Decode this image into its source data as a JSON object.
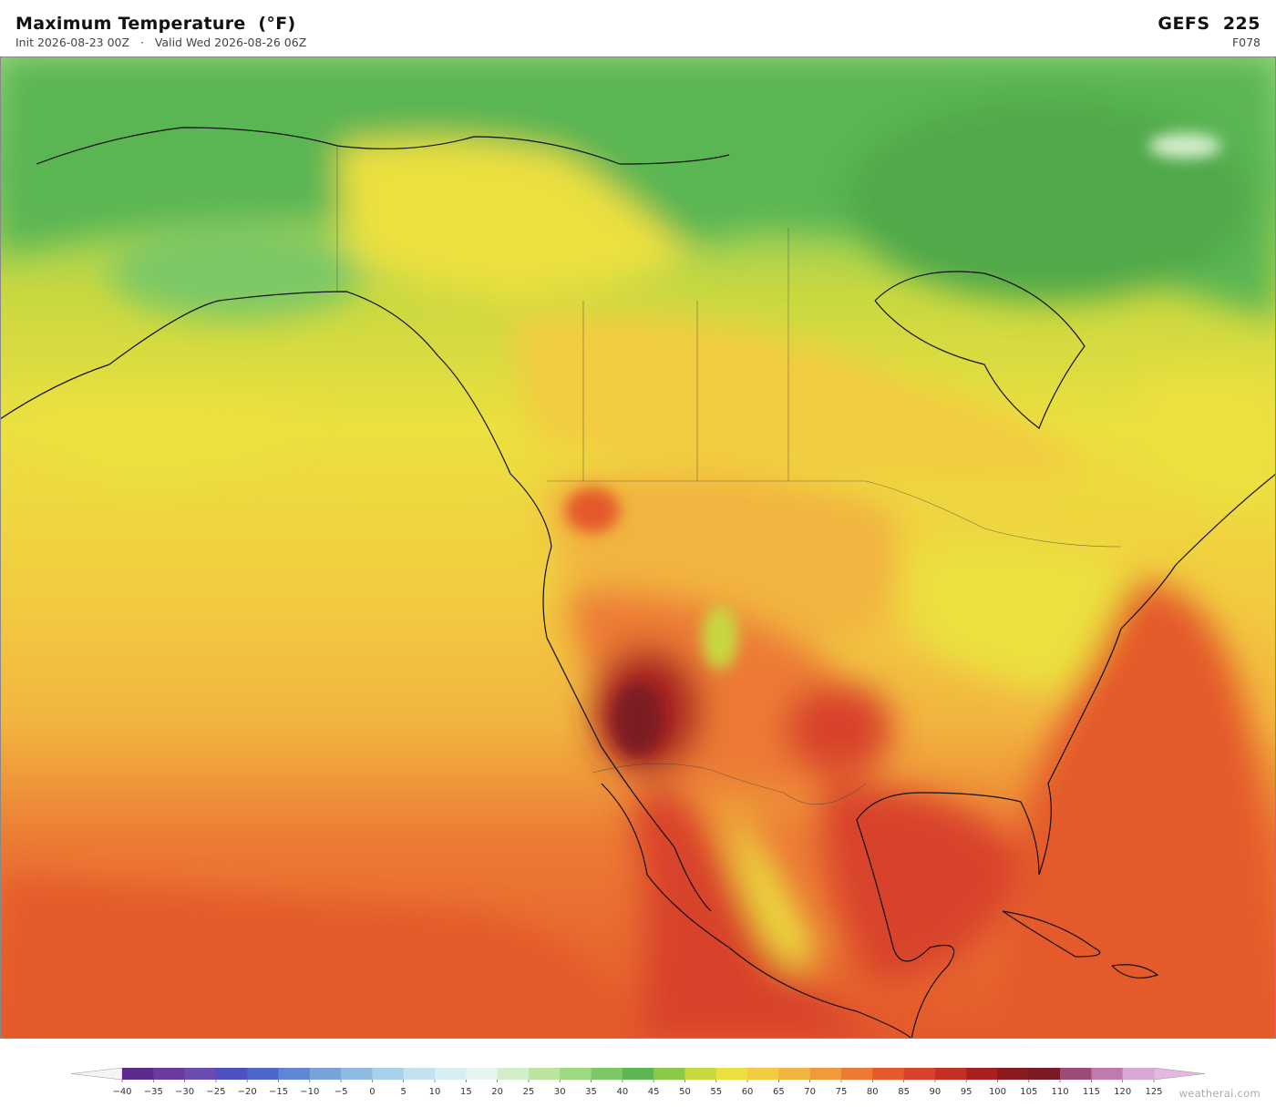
{
  "header": {
    "title": "Maximum Temperature  (°F)",
    "subtitle": "Init 2026-08-23 00Z   ·   Valid Wed 2026-08-26 06Z",
    "model": "GEFS  225",
    "forecast_hour": "F078"
  },
  "colorbar": {
    "ticks": [
      {
        "value": -40,
        "label": "−40"
      },
      {
        "value": -35,
        "label": "−35"
      },
      {
        "value": -30,
        "label": "−30"
      },
      {
        "value": -25,
        "label": "−25"
      },
      {
        "value": -20,
        "label": "−20"
      },
      {
        "value": -15,
        "label": "−15"
      },
      {
        "value": -10,
        "label": "−10"
      },
      {
        "value": -5,
        "label": "−5"
      },
      0,
      5,
      10,
      15,
      20,
      25,
      30,
      35,
      40,
      45,
      50,
      55,
      60,
      65,
      70,
      75,
      80,
      85,
      90,
      95,
      100,
      105,
      110,
      115,
      120,
      125
    ],
    "colors": [
      "#5b2a8c",
      "#6a3a9e",
      "#6a4bb0",
      "#4f4fc4",
      "#4f66cc",
      "#5f86d4",
      "#78a2da",
      "#8fbbe2",
      "#a8d0ea",
      "#c2e2f0",
      "#d8eef2",
      "#e6f4ee",
      "#d4eecc",
      "#bce4a0",
      "#9ed97f",
      "#7cc866",
      "#5ab552",
      "#8cc84a",
      "#c8d840",
      "#ece040",
      "#f2cc40",
      "#f2b440",
      "#f09a3c",
      "#ec7a34",
      "#e45a2c",
      "#d8422a",
      "#c43024",
      "#a82020",
      "#8a1a1e",
      "#7a1a24",
      "#9e4a78",
      "#c07ab0",
      "#d8a8d4"
    ],
    "under_color": "#f4f4f4",
    "over_color": "#e4b8e0"
  },
  "watermark": "weatherai.com"
}
